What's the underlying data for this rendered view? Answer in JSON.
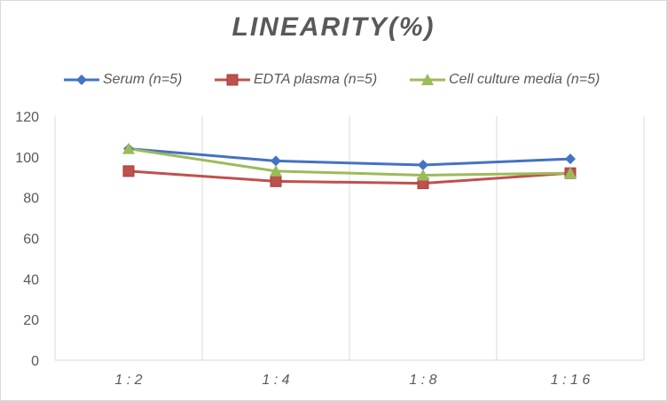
{
  "chart_data": {
    "type": "line",
    "title": "LINEARITY(%)",
    "xlabel": "",
    "ylabel": "",
    "categories": [
      "1:2",
      "1:4",
      "1:8",
      "1:16"
    ],
    "ylim": [
      0,
      120
    ],
    "yticks": [
      0,
      20,
      40,
      60,
      80,
      100,
      120
    ],
    "grid": "vertical",
    "legend_position": "top",
    "series": [
      {
        "name": "Serum (n=5)",
        "values": [
          104,
          98,
          96,
          99
        ],
        "color": "#4472c4",
        "marker": "diamond"
      },
      {
        "name": "EDTA plasma (n=5)",
        "values": [
          93,
          88,
          87,
          92
        ],
        "color": "#c0504d",
        "marker": "square"
      },
      {
        "name": "Cell culture media (n=5)",
        "values": [
          104,
          93,
          91,
          92
        ],
        "color": "#9bbb59",
        "marker": "triangle"
      }
    ]
  }
}
